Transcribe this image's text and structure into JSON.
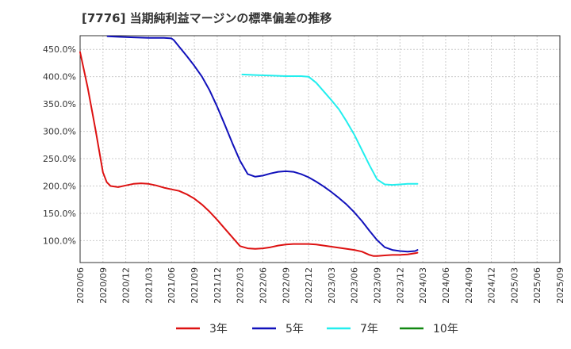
{
  "chart_data": {
    "type": "line",
    "title": "[7776]  当期純利益マージンの標準偏差の推移",
    "xlabel": "",
    "ylabel": "",
    "ylim": [
      60,
      475
    ],
    "yticks": [
      100,
      150,
      200,
      250,
      300,
      350,
      400,
      450
    ],
    "y_tick_labels": [
      "100.0%",
      "150.0%",
      "200.0%",
      "250.0%",
      "300.0%",
      "350.0%",
      "400.0%",
      "450.0%"
    ],
    "x_tick_labels": [
      "2020/06",
      "2020/09",
      "2020/12",
      "2021/03",
      "2021/06",
      "2021/09",
      "2021/12",
      "2022/03",
      "2022/06",
      "2022/09",
      "2022/12",
      "2023/03",
      "2023/06",
      "2023/09",
      "2023/12",
      "2024/03",
      "2024/06",
      "2024/09",
      "2024/12",
      "2025/03",
      "2025/06",
      "2025/09"
    ],
    "grid": true,
    "legend_position": "bottom",
    "series": [
      {
        "name": "3年",
        "color": "#dd1111",
        "points": [
          [
            0,
            445
          ],
          [
            1,
            380
          ],
          [
            2,
            305
          ],
          [
            3,
            225
          ],
          [
            3.5,
            207
          ],
          [
            4,
            200
          ],
          [
            5,
            198
          ],
          [
            6,
            201
          ],
          [
            7,
            204
          ],
          [
            8,
            205
          ],
          [
            9,
            204
          ],
          [
            10,
            201
          ],
          [
            11,
            197
          ],
          [
            12,
            194
          ],
          [
            13,
            191
          ],
          [
            14,
            185
          ],
          [
            15,
            177
          ],
          [
            16,
            166
          ],
          [
            17,
            153
          ],
          [
            18,
            138
          ],
          [
            19,
            122
          ],
          [
            20,
            106
          ],
          [
            21,
            90
          ],
          [
            22,
            86
          ],
          [
            23,
            85
          ],
          [
            24,
            86
          ],
          [
            25,
            88
          ],
          [
            26,
            91
          ],
          [
            27,
            93
          ],
          [
            28,
            94
          ],
          [
            29,
            94
          ],
          [
            30,
            94
          ],
          [
            31,
            93
          ],
          [
            32,
            91
          ],
          [
            33,
            89
          ],
          [
            34,
            87
          ],
          [
            35,
            85
          ],
          [
            36,
            83
          ],
          [
            37,
            80
          ],
          [
            38,
            74
          ],
          [
            38.5,
            72
          ],
          [
            39,
            72
          ],
          [
            40,
            73
          ],
          [
            41,
            74
          ],
          [
            42,
            74
          ],
          [
            43,
            75
          ],
          [
            44,
            77
          ],
          [
            44.3,
            78
          ]
        ]
      },
      {
        "name": "5年",
        "color": "#1111bb",
        "points": [
          [
            3.6,
            474
          ],
          [
            5,
            473
          ],
          [
            7,
            472
          ],
          [
            9,
            471
          ],
          [
            11,
            471
          ],
          [
            12,
            470
          ],
          [
            12.3,
            467
          ],
          [
            13,
            455
          ],
          [
            14,
            438
          ],
          [
            15,
            420
          ],
          [
            16,
            400
          ],
          [
            17,
            375
          ],
          [
            18,
            345
          ],
          [
            19,
            312
          ],
          [
            20,
            278
          ],
          [
            21,
            246
          ],
          [
            22,
            222
          ],
          [
            23,
            217
          ],
          [
            24,
            219
          ],
          [
            25,
            223
          ],
          [
            26,
            226
          ],
          [
            27,
            227
          ],
          [
            28,
            226
          ],
          [
            29,
            222
          ],
          [
            30,
            216
          ],
          [
            31,
            208
          ],
          [
            32,
            199
          ],
          [
            33,
            189
          ],
          [
            34,
            178
          ],
          [
            35,
            166
          ],
          [
            36,
            152
          ],
          [
            37,
            136
          ],
          [
            38,
            118
          ],
          [
            39,
            101
          ],
          [
            40,
            88
          ],
          [
            41,
            83
          ],
          [
            42,
            81
          ],
          [
            43,
            80
          ],
          [
            44,
            81
          ],
          [
            44.3,
            83
          ]
        ]
      },
      {
        "name": "7年",
        "color": "#22eeee",
        "points": [
          [
            21.3,
            404
          ],
          [
            23,
            403
          ],
          [
            25,
            402
          ],
          [
            27,
            401
          ],
          [
            29,
            401
          ],
          [
            30,
            400
          ],
          [
            31,
            389
          ],
          [
            32,
            373
          ],
          [
            33,
            357
          ],
          [
            34,
            340
          ],
          [
            35,
            318
          ],
          [
            36,
            294
          ],
          [
            37,
            266
          ],
          [
            38,
            238
          ],
          [
            39,
            212
          ],
          [
            40,
            203
          ],
          [
            41,
            202
          ],
          [
            42,
            203
          ],
          [
            43,
            204
          ],
          [
            44,
            204
          ],
          [
            44.3,
            204
          ]
        ]
      },
      {
        "name": "10年",
        "color": "#118811",
        "points": []
      }
    ]
  }
}
